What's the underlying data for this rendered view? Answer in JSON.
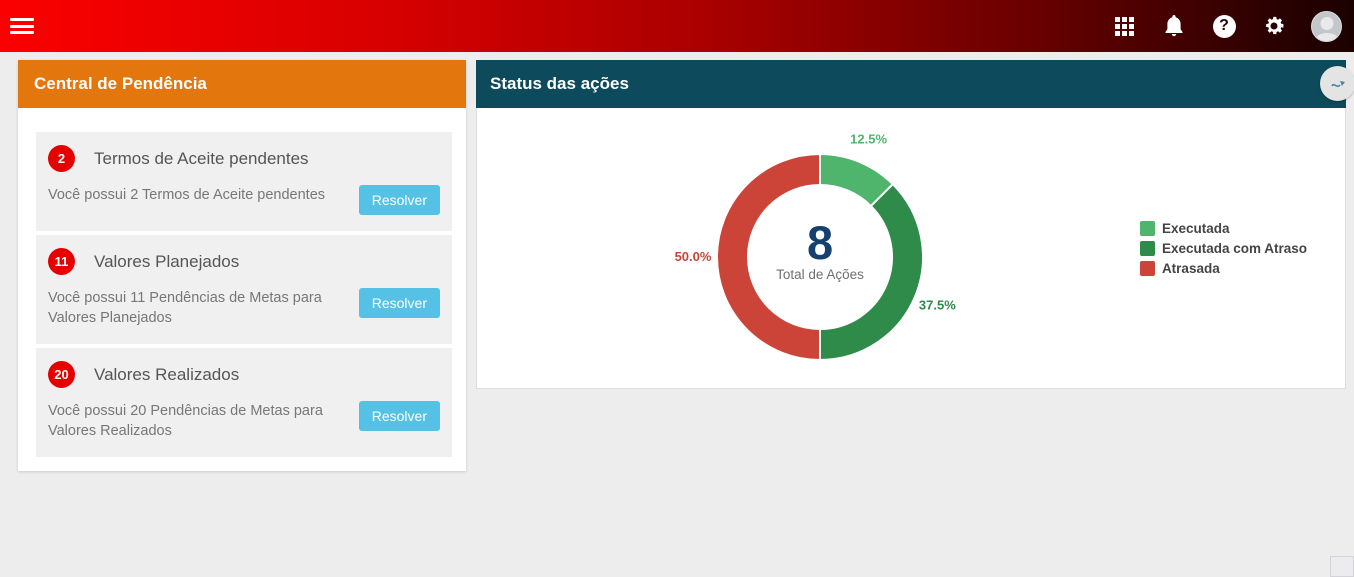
{
  "topbar": {
    "menu_icon": "hamburger-menu",
    "right_icons": [
      "apps-grid",
      "notifications-bell",
      "help",
      "settings",
      "user-avatar"
    ],
    "help_glyph": "?"
  },
  "pending_panel": {
    "title": "Central de Pendência",
    "items": [
      {
        "count": "2",
        "title": "Termos de Aceite pendentes",
        "description": "Você possui 2 Termos de Aceite pendentes",
        "action": "Resolver"
      },
      {
        "count": "11",
        "title": "Valores Planejados",
        "description": "Você possui 11 Pendências de Metas para Valores Planejados",
        "action": "Resolver"
      },
      {
        "count": "20",
        "title": "Valores Realizados",
        "description": "Você possui 20 Pendências de Metas para Valores Realizados",
        "action": "Resolver"
      }
    ]
  },
  "status_panel": {
    "title": "Status das ações"
  },
  "chart_data": {
    "type": "pie",
    "donut": true,
    "title": "Status das ações",
    "center_value": "8",
    "center_label": "Total de Ações",
    "legend_position": "right",
    "series": [
      {
        "name": "Executada",
        "value": 1,
        "percent": "12.5%",
        "color": "#4FB56D"
      },
      {
        "name": "Executada com Atraso",
        "value": 3,
        "percent": "37.5%",
        "color": "#2E8B4A"
      },
      {
        "name": "Atrasada",
        "value": 4,
        "percent": "50.0%",
        "color": "#CC4437"
      }
    ]
  },
  "colors": {
    "topbar_red": "#fb0000",
    "pending_header_orange": "#E4760E",
    "status_header_teal": "#0D4A5C",
    "badge_red": "#E60000",
    "button_blue": "#55C1E4",
    "center_value_navy": "#16406F"
  }
}
